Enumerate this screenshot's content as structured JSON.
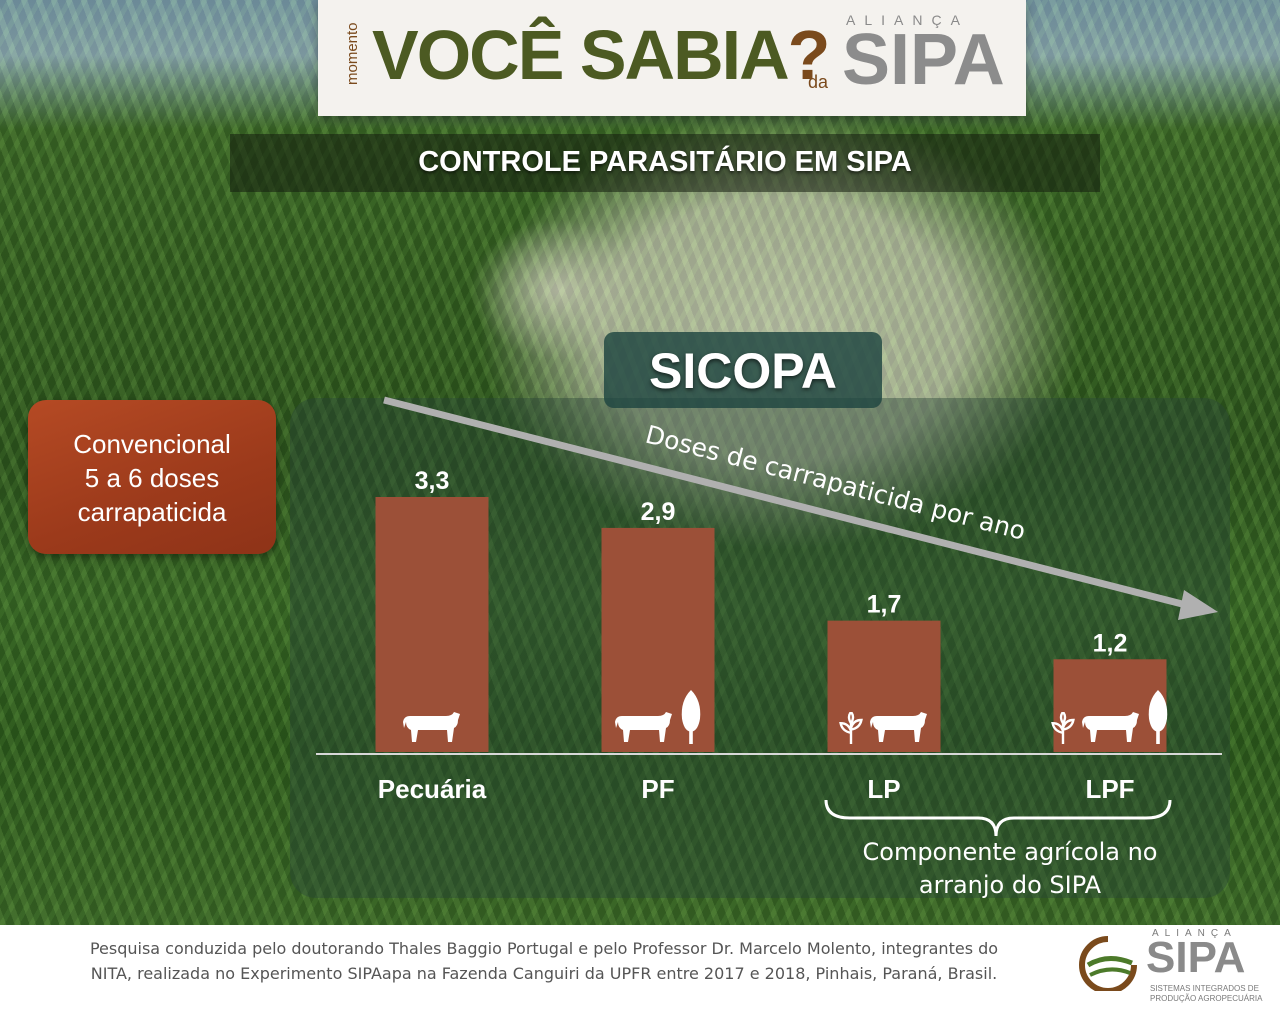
{
  "header": {
    "momento": "momento",
    "title": "VOCÊ SABIA",
    "question_mark": "?",
    "da": "da",
    "alianca": "ALIANÇA",
    "sipa": "SIPA"
  },
  "subtitle": "CONTROLE PARASITÁRIO EM SIPA",
  "sicopa_label": "SICOPA",
  "conventional": {
    "line1": "Convencional",
    "line2": "5 a 6 doses",
    "line3": "carrapaticida"
  },
  "chart_data": {
    "type": "bar",
    "categories": [
      "Pecuária",
      "PF",
      "LP",
      "LPF"
    ],
    "values": [
      3.3,
      2.9,
      1.7,
      1.2
    ],
    "value_labels": [
      "3,3",
      "2,9",
      "1,7",
      "1,2"
    ],
    "category_icons": [
      [
        "cow-icon"
      ],
      [
        "cow-icon",
        "tree-icon"
      ],
      [
        "plant-icon",
        "cow-icon"
      ],
      [
        "plant-icon",
        "cow-icon",
        "tree-icon"
      ]
    ],
    "title": "",
    "xlabel": "",
    "ylabel": "",
    "arrow_label": "Doses de carrapaticida por ano",
    "brace_label_line1": "Componente agrícola no",
    "brace_label_line2": "arranjo do SIPA",
    "ylim": [
      0,
      3.3
    ],
    "bar_color": "#9c5038",
    "grid": false
  },
  "footer": {
    "line1": "Pesquisa conduzida pelo doutorando Thales Baggio Portugal e pelo Professor Dr. Marcelo Molento, integrantes do",
    "line2": "NITA, realizada no Experimento SIPAapa na Fazenda Canguiri da UPFR entre 2017 e 2018, Pinhais, Paraná, Brasil.",
    "logo_alianca": "ALIANÇA",
    "logo_sipa": "SIPA",
    "logo_sub1": "SISTEMAS INTEGRADOS DE",
    "logo_sub2": "PRODUÇÃO AGROPECUÁRIA"
  }
}
